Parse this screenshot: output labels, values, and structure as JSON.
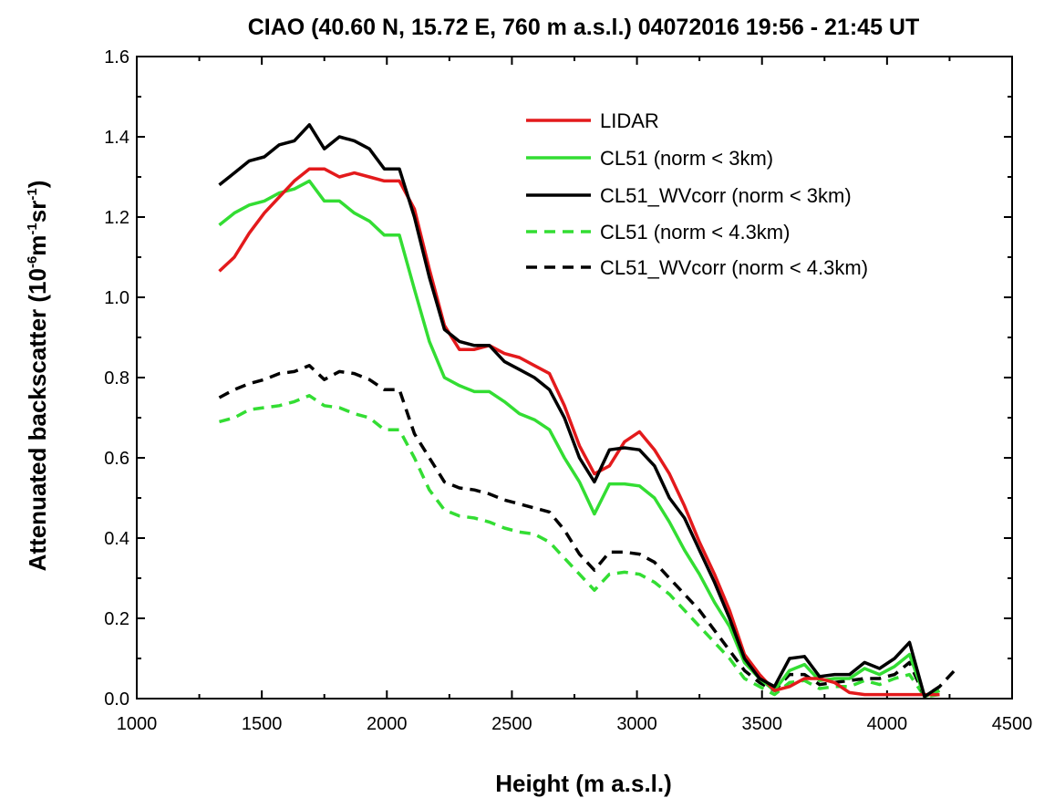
{
  "chart_data": {
    "type": "line",
    "title": "CIAO (40.60 N, 15.72 E, 760 m a.s.l.) 04072016 19:56 - 21:45 UT",
    "xlabel": "Height (m a.s.l.)",
    "ylabel_main": "Attenuated backscatter (10",
    "ylabel_exp1": "-6",
    "ylabel_mid": "m",
    "ylabel_exp2": "-1",
    "ylabel_mid2": "sr",
    "ylabel_exp3": "-1",
    "ylabel_end": ")",
    "xlim": [
      1000,
      4500
    ],
    "ylim": [
      0.0,
      1.6
    ],
    "xticks": [
      1000,
      1500,
      2000,
      2500,
      3000,
      3500,
      4000,
      4500
    ],
    "xtick_labels": [
      "1000",
      "1500",
      "2000",
      "2500",
      "3000",
      "3500",
      "4000",
      "4500"
    ],
    "yticks": [
      0.0,
      0.2,
      0.4,
      0.6,
      0.8,
      1.0,
      1.2,
      1.4,
      1.6
    ],
    "ytick_labels": [
      "0.0",
      "0.2",
      "0.4",
      "0.6",
      "0.8",
      "1.0",
      "1.2",
      "1.4",
      "1.6"
    ],
    "legend_position": "top-right",
    "series": [
      {
        "name": "LIDAR",
        "color": "#e31a1c",
        "style": "solid",
        "points": [
          [
            1330,
            1.065
          ],
          [
            1390,
            1.1
          ],
          [
            1450,
            1.16
          ],
          [
            1510,
            1.21
          ],
          [
            1570,
            1.25
          ],
          [
            1630,
            1.29
          ],
          [
            1690,
            1.32
          ],
          [
            1750,
            1.32
          ],
          [
            1810,
            1.3
          ],
          [
            1870,
            1.31
          ],
          [
            1930,
            1.3
          ],
          [
            1990,
            1.29
          ],
          [
            2050,
            1.29
          ],
          [
            2110,
            1.22
          ],
          [
            2170,
            1.07
          ],
          [
            2230,
            0.93
          ],
          [
            2290,
            0.87
          ],
          [
            2350,
            0.87
          ],
          [
            2410,
            0.88
          ],
          [
            2470,
            0.86
          ],
          [
            2530,
            0.85
          ],
          [
            2590,
            0.83
          ],
          [
            2650,
            0.81
          ],
          [
            2710,
            0.73
          ],
          [
            2770,
            0.63
          ],
          [
            2830,
            0.56
          ],
          [
            2890,
            0.58
          ],
          [
            2950,
            0.64
          ],
          [
            3010,
            0.665
          ],
          [
            3070,
            0.62
          ],
          [
            3130,
            0.56
          ],
          [
            3190,
            0.48
          ],
          [
            3250,
            0.39
          ],
          [
            3310,
            0.31
          ],
          [
            3370,
            0.22
          ],
          [
            3430,
            0.11
          ],
          [
            3490,
            0.06
          ],
          [
            3550,
            0.02
          ],
          [
            3610,
            0.03
          ],
          [
            3670,
            0.05
          ],
          [
            3730,
            0.05
          ],
          [
            3790,
            0.04
          ],
          [
            3850,
            0.015
          ],
          [
            3910,
            0.01
          ],
          [
            3970,
            0.01
          ],
          [
            4030,
            0.01
          ],
          [
            4090,
            0.01
          ],
          [
            4150,
            0.01
          ],
          [
            4210,
            0.01
          ]
        ]
      },
      {
        "name": "CL51 (norm < 3km)",
        "color": "#33dd33",
        "style": "solid",
        "points": [
          [
            1330,
            1.18
          ],
          [
            1390,
            1.21
          ],
          [
            1450,
            1.23
          ],
          [
            1510,
            1.24
          ],
          [
            1570,
            1.26
          ],
          [
            1630,
            1.27
          ],
          [
            1690,
            1.29
          ],
          [
            1750,
            1.24
          ],
          [
            1810,
            1.24
          ],
          [
            1870,
            1.21
          ],
          [
            1930,
            1.19
          ],
          [
            1990,
            1.155
          ],
          [
            2050,
            1.155
          ],
          [
            2110,
            1.02
          ],
          [
            2170,
            0.89
          ],
          [
            2230,
            0.8
          ],
          [
            2290,
            0.78
          ],
          [
            2350,
            0.765
          ],
          [
            2410,
            0.765
          ],
          [
            2470,
            0.74
          ],
          [
            2530,
            0.71
          ],
          [
            2590,
            0.695
          ],
          [
            2650,
            0.67
          ],
          [
            2710,
            0.6
          ],
          [
            2770,
            0.54
          ],
          [
            2830,
            0.46
          ],
          [
            2890,
            0.535
          ],
          [
            2950,
            0.535
          ],
          [
            3010,
            0.53
          ],
          [
            3070,
            0.5
          ],
          [
            3130,
            0.44
          ],
          [
            3190,
            0.37
          ],
          [
            3250,
            0.31
          ],
          [
            3310,
            0.24
          ],
          [
            3370,
            0.18
          ],
          [
            3430,
            0.09
          ],
          [
            3490,
            0.05
          ],
          [
            3550,
            0.02
          ],
          [
            3610,
            0.07
          ],
          [
            3670,
            0.085
          ],
          [
            3730,
            0.045
          ],
          [
            3790,
            0.05
          ],
          [
            3850,
            0.05
          ],
          [
            3910,
            0.075
          ],
          [
            3970,
            0.06
          ],
          [
            4030,
            0.08
          ],
          [
            4090,
            0.11
          ],
          [
            4150,
            0.005
          ],
          [
            4210,
            0.02
          ]
        ]
      },
      {
        "name": "CL51_WVcorr (norm < 3km)",
        "color": "#000000",
        "style": "solid",
        "points": [
          [
            1330,
            1.28
          ],
          [
            1390,
            1.31
          ],
          [
            1450,
            1.34
          ],
          [
            1510,
            1.35
          ],
          [
            1570,
            1.38
          ],
          [
            1630,
            1.39
          ],
          [
            1690,
            1.43
          ],
          [
            1750,
            1.37
          ],
          [
            1810,
            1.4
          ],
          [
            1870,
            1.39
          ],
          [
            1930,
            1.37
          ],
          [
            1990,
            1.32
          ],
          [
            2050,
            1.32
          ],
          [
            2110,
            1.2
          ],
          [
            2170,
            1.05
          ],
          [
            2230,
            0.92
          ],
          [
            2290,
            0.89
          ],
          [
            2350,
            0.88
          ],
          [
            2410,
            0.88
          ],
          [
            2470,
            0.84
          ],
          [
            2530,
            0.82
          ],
          [
            2590,
            0.8
          ],
          [
            2650,
            0.77
          ],
          [
            2710,
            0.7
          ],
          [
            2770,
            0.6
          ],
          [
            2830,
            0.54
          ],
          [
            2890,
            0.62
          ],
          [
            2950,
            0.625
          ],
          [
            3010,
            0.62
          ],
          [
            3070,
            0.58
          ],
          [
            3130,
            0.5
          ],
          [
            3190,
            0.45
          ],
          [
            3250,
            0.37
          ],
          [
            3310,
            0.29
          ],
          [
            3370,
            0.2
          ],
          [
            3430,
            0.1
          ],
          [
            3490,
            0.05
          ],
          [
            3550,
            0.03
          ],
          [
            3610,
            0.1
          ],
          [
            3670,
            0.105
          ],
          [
            3730,
            0.055
          ],
          [
            3790,
            0.06
          ],
          [
            3850,
            0.06
          ],
          [
            3910,
            0.09
          ],
          [
            3970,
            0.075
          ],
          [
            4030,
            0.1
          ],
          [
            4090,
            0.14
          ],
          [
            4150,
            0.005
          ],
          [
            4210,
            0.03
          ]
        ]
      },
      {
        "name": "CL51 (norm < 4.3km)",
        "color": "#33dd33",
        "style": "dashed",
        "points": [
          [
            1330,
            0.69
          ],
          [
            1390,
            0.7
          ],
          [
            1450,
            0.72
          ],
          [
            1510,
            0.725
          ],
          [
            1570,
            0.73
          ],
          [
            1630,
            0.74
          ],
          [
            1690,
            0.755
          ],
          [
            1750,
            0.73
          ],
          [
            1810,
            0.725
          ],
          [
            1870,
            0.71
          ],
          [
            1930,
            0.7
          ],
          [
            1990,
            0.67
          ],
          [
            2050,
            0.67
          ],
          [
            2110,
            0.6
          ],
          [
            2170,
            0.52
          ],
          [
            2230,
            0.47
          ],
          [
            2290,
            0.455
          ],
          [
            2350,
            0.45
          ],
          [
            2410,
            0.44
          ],
          [
            2470,
            0.425
          ],
          [
            2530,
            0.415
          ],
          [
            2590,
            0.41
          ],
          [
            2650,
            0.39
          ],
          [
            2710,
            0.35
          ],
          [
            2770,
            0.31
          ],
          [
            2830,
            0.27
          ],
          [
            2890,
            0.31
          ],
          [
            2950,
            0.315
          ],
          [
            3010,
            0.31
          ],
          [
            3070,
            0.29
          ],
          [
            3130,
            0.26
          ],
          [
            3190,
            0.22
          ],
          [
            3250,
            0.18
          ],
          [
            3310,
            0.14
          ],
          [
            3370,
            0.1
          ],
          [
            3430,
            0.05
          ],
          [
            3490,
            0.03
          ],
          [
            3550,
            0.01
          ],
          [
            3610,
            0.04
          ],
          [
            3670,
            0.045
          ],
          [
            3730,
            0.025
          ],
          [
            3790,
            0.03
          ],
          [
            3850,
            0.03
          ],
          [
            3910,
            0.045
          ],
          [
            3970,
            0.035
          ],
          [
            4030,
            0.05
          ],
          [
            4090,
            0.06
          ],
          [
            4150,
            0.005
          ],
          [
            4210,
            0.01
          ]
        ]
      },
      {
        "name": "CL51_WVcorr (norm < 4.3km)",
        "color": "#000000",
        "style": "dashed",
        "points": [
          [
            1330,
            0.75
          ],
          [
            1390,
            0.77
          ],
          [
            1450,
            0.785
          ],
          [
            1510,
            0.795
          ],
          [
            1570,
            0.81
          ],
          [
            1630,
            0.815
          ],
          [
            1690,
            0.83
          ],
          [
            1750,
            0.795
          ],
          [
            1810,
            0.815
          ],
          [
            1870,
            0.81
          ],
          [
            1930,
            0.795
          ],
          [
            1990,
            0.77
          ],
          [
            2050,
            0.77
          ],
          [
            2110,
            0.66
          ],
          [
            2170,
            0.6
          ],
          [
            2230,
            0.54
          ],
          [
            2290,
            0.525
          ],
          [
            2350,
            0.52
          ],
          [
            2410,
            0.51
          ],
          [
            2470,
            0.495
          ],
          [
            2530,
            0.485
          ],
          [
            2590,
            0.475
          ],
          [
            2650,
            0.465
          ],
          [
            2710,
            0.42
          ],
          [
            2770,
            0.36
          ],
          [
            2830,
            0.32
          ],
          [
            2890,
            0.365
          ],
          [
            2950,
            0.365
          ],
          [
            3010,
            0.36
          ],
          [
            3070,
            0.34
          ],
          [
            3130,
            0.3
          ],
          [
            3190,
            0.26
          ],
          [
            3250,
            0.22
          ],
          [
            3310,
            0.17
          ],
          [
            3370,
            0.12
          ],
          [
            3430,
            0.07
          ],
          [
            3490,
            0.04
          ],
          [
            3550,
            0.02
          ],
          [
            3610,
            0.06
          ],
          [
            3670,
            0.06
          ],
          [
            3730,
            0.035
          ],
          [
            3790,
            0.04
          ],
          [
            3850,
            0.045
          ],
          [
            3910,
            0.05
          ],
          [
            3970,
            0.05
          ],
          [
            4030,
            0.06
          ],
          [
            4090,
            0.09
          ],
          [
            4150,
            0.005
          ],
          [
            4210,
            0.03
          ],
          [
            4270,
            0.07
          ]
        ]
      }
    ]
  },
  "colors": {
    "axis": "#000000",
    "background": "#ffffff"
  }
}
